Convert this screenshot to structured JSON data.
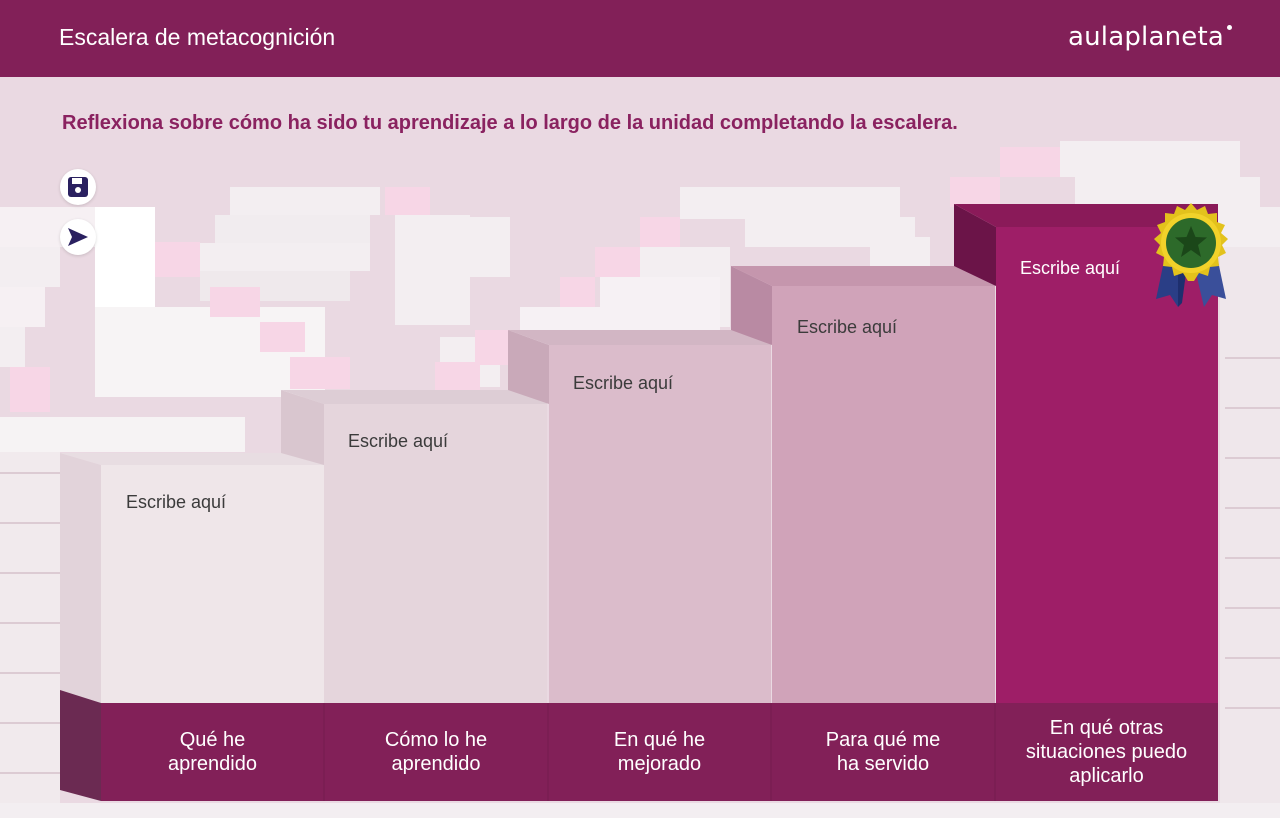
{
  "header": {
    "title": "Escalera de metacognición",
    "brand": "aulaplaneta"
  },
  "instruction": "Reflexiona sobre cómo ha sido tu aprendizaje a lo largo de la unidad completando la escalera.",
  "toolbar": {
    "save_icon": "save-icon",
    "send_icon": "send-icon"
  },
  "steps": [
    {
      "placeholder": "Escribe aquí",
      "label_lines": [
        "Qué he",
        "aprendido"
      ],
      "color": "#efe6e9"
    },
    {
      "placeholder": "Escribe aquí",
      "label_lines": [
        "Cómo lo he",
        "aprendido"
      ],
      "color": "#e5d5dc"
    },
    {
      "placeholder": "Escribe aquí",
      "label_lines": [
        "En qué he",
        "mejorado"
      ],
      "color": "#dbbccb"
    },
    {
      "placeholder": "Escribe aquí",
      "label_lines": [
        "Para qué me",
        "ha servido"
      ],
      "color": "#d0a3b9"
    },
    {
      "placeholder": "Escribe aquí",
      "label_lines": [
        "En qué otras",
        "situaciones puedo",
        "aplicarlo"
      ],
      "color": "#9e1e67"
    }
  ],
  "colors": {
    "header": "#822058",
    "label_band": "#822058",
    "accent": "#8a2260"
  },
  "badge_icon": "award-medal-icon"
}
